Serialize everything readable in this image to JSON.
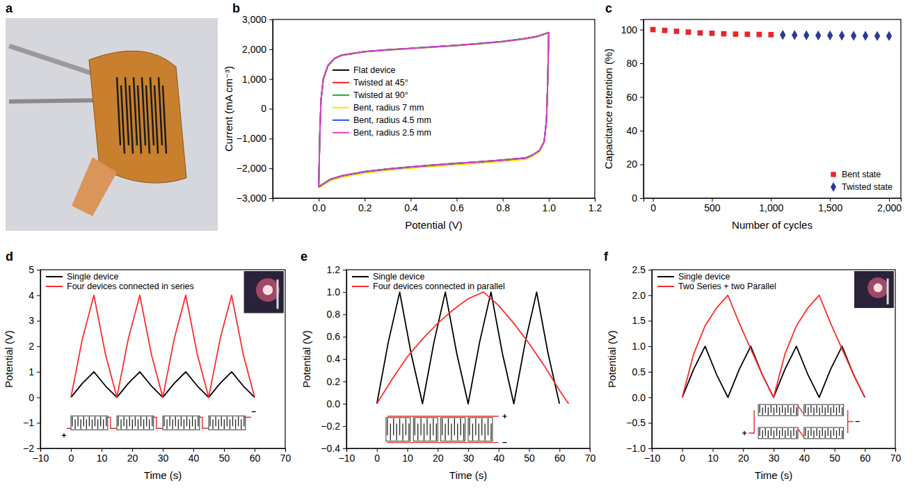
{
  "chart_data": [
    {
      "type": "image",
      "panel": "a"
    },
    {
      "type": "line",
      "panel": "b",
      "xlabel": "Potential (V)",
      "ylabel": "Current (mA cm⁻³)",
      "xlim": [
        -0.2,
        1.2
      ],
      "ylim": [
        -3000,
        3000
      ],
      "xticks": [
        {
          "value": 0,
          "label": "0.0"
        },
        0.2,
        0.4,
        0.6,
        0.8,
        {
          "value": 1,
          "label": "1.0"
        },
        1.2
      ],
      "yticks": [
        {
          "value": -3000,
          "label": "−3,000"
        },
        {
          "value": -2000,
          "label": "−2,000"
        },
        {
          "value": -1000,
          "label": "−1,000"
        },
        0,
        {
          "value": 1000,
          "label": "1,000"
        },
        {
          "value": 2000,
          "label": "2,000"
        },
        {
          "value": 3000,
          "label": "3,000"
        }
      ],
      "grid": false,
      "legend": "center left",
      "x": [
        0,
        0.005,
        0.01,
        0.02,
        0.04,
        0.07,
        0.1,
        0.2,
        0.3,
        0.4,
        0.5,
        0.6,
        0.7,
        0.8,
        0.9,
        0.95,
        1.0,
        0.995,
        0.99,
        0.98,
        0.96,
        0.93,
        0.9,
        0.8,
        0.7,
        0.6,
        0.5,
        0.4,
        0.3,
        0.2,
        0.1,
        0.05,
        0.0
      ],
      "series": [
        {
          "name": "Flat device",
          "color": "#000000",
          "values": [
            -2600,
            -800,
            300,
            1000,
            1450,
            1700,
            1800,
            1920,
            1980,
            2030,
            2080,
            2130,
            2190,
            2260,
            2360,
            2430,
            2560,
            800,
            -400,
            -1100,
            -1400,
            -1550,
            -1650,
            -1720,
            -1780,
            -1830,
            -1890,
            -1950,
            -2020,
            -2110,
            -2250,
            -2370,
            -2620
          ]
        },
        {
          "name": "Twisted at 45°",
          "color": "#ff1a1a",
          "values": [
            -2610,
            -810,
            290,
            990,
            1440,
            1690,
            1795,
            1915,
            1975,
            2025,
            2075,
            2125,
            2185,
            2255,
            2355,
            2425,
            2555,
            790,
            -410,
            -1110,
            -1410,
            -1560,
            -1660,
            -1730,
            -1790,
            -1840,
            -1900,
            -1960,
            -2030,
            -2120,
            -2260,
            -2380,
            -2630
          ]
        },
        {
          "name": "Twisted at 90°",
          "color": "#1aa64a",
          "values": [
            -2590,
            -790,
            310,
            1010,
            1455,
            1705,
            1805,
            1925,
            1985,
            2035,
            2085,
            2135,
            2195,
            2265,
            2365,
            2435,
            2565,
            810,
            -390,
            -1090,
            -1390,
            -1545,
            -1645,
            -1715,
            -1775,
            -1825,
            -1885,
            -1945,
            -2015,
            -2105,
            -2245,
            -2365,
            -2610
          ]
        },
        {
          "name": "Bent, radius 7 mm",
          "color": "#f2e600",
          "values": [
            -2640,
            -830,
            270,
            970,
            1430,
            1680,
            1785,
            1905,
            1965,
            2015,
            2065,
            2115,
            2175,
            2245,
            2345,
            2415,
            2545,
            770,
            -430,
            -1140,
            -1440,
            -1590,
            -1700,
            -1770,
            -1830,
            -1880,
            -1940,
            -2000,
            -2070,
            -2160,
            -2300,
            -2420,
            -2660
          ]
        },
        {
          "name": "Bent, radius 4.5 mm",
          "color": "#1f4fff",
          "values": [
            -2620,
            -815,
            285,
            985,
            1445,
            1695,
            1798,
            1918,
            1978,
            2028,
            2078,
            2128,
            2188,
            2258,
            2358,
            2428,
            2558,
            795,
            -405,
            -1105,
            -1405,
            -1555,
            -1655,
            -1725,
            -1785,
            -1835,
            -1895,
            -1955,
            -2025,
            -2115,
            -2255,
            -2375,
            -2625
          ]
        },
        {
          "name": "Bent, radius 2.5 mm",
          "color": "#e040c8",
          "values": [
            -2600,
            -800,
            300,
            1000,
            1450,
            1700,
            1800,
            1920,
            1980,
            2030,
            2080,
            2130,
            2190,
            2260,
            2360,
            2430,
            2560,
            800,
            -400,
            -1100,
            -1400,
            -1550,
            -1650,
            -1720,
            -1780,
            -1830,
            -1890,
            -1950,
            -2020,
            -2110,
            -2250,
            -2370,
            -2620
          ]
        }
      ]
    },
    {
      "type": "scatter",
      "panel": "c",
      "xlabel": "Number of cycles",
      "ylabel": "Capacitance retention (%)",
      "xlim": [
        -80,
        2100
      ],
      "ylim": [
        0,
        106
      ],
      "xticks": [
        0,
        500,
        {
          "value": 1000,
          "label": "1,000"
        },
        {
          "value": 1500,
          "label": "1,500"
        },
        {
          "value": 2000,
          "label": "2,000"
        }
      ],
      "yticks": [
        0,
        20,
        40,
        60,
        80,
        100
      ],
      "grid": false,
      "legend": "lower right",
      "series": [
        {
          "name": "Bent state",
          "color": "#e8262b",
          "marker": "square",
          "x": [
            0,
            100,
            200,
            300,
            400,
            500,
            600,
            700,
            800,
            900,
            1000
          ],
          "values": [
            100,
            99.5,
            99,
            98.5,
            98,
            97.8,
            97.5,
            97.3,
            97.2,
            97.1,
            97
          ]
        },
        {
          "name": "Twisted state",
          "color": "#2b3a98",
          "marker": "diamond",
          "x": [
            1100,
            1200,
            1300,
            1400,
            1500,
            1600,
            1700,
            1800,
            1900,
            2000
          ],
          "values": [
            96.8,
            96.7,
            96.6,
            96.5,
            96.5,
            96.4,
            96.3,
            96.3,
            96.2,
            96.2
          ]
        }
      ]
    },
    {
      "type": "line",
      "panel": "d",
      "xlabel": "Time (s)",
      "ylabel": "Potential (V)",
      "xlim": [
        -10,
        70
      ],
      "ylim": [
        -2,
        5
      ],
      "xticks": [
        {
          "value": -10,
          "label": "−10"
        },
        0,
        10,
        20,
        30,
        40,
        50,
        60,
        70
      ],
      "yticks": [
        {
          "value": -2,
          "label": "−2"
        },
        {
          "value": -1,
          "label": "−1"
        },
        0,
        1,
        2,
        3,
        4,
        5
      ],
      "grid": false,
      "legend": "upper left",
      "series": [
        {
          "name": "Single device",
          "color": "#000000",
          "x": [
            0,
            3.75,
            7.5,
            11.25,
            15,
            18.75,
            22.5,
            26.25,
            30,
            33.75,
            37.5,
            41.25,
            45,
            48.75,
            52.5,
            56.25,
            60
          ],
          "values": [
            0,
            0.55,
            1,
            0.45,
            0,
            0.55,
            1,
            0.45,
            0,
            0.55,
            1,
            0.45,
            0,
            0.55,
            1,
            0.45,
            0
          ]
        },
        {
          "name": "Four devices connected in series",
          "color": "#ff2a2a",
          "x": [
            0,
            3.75,
            7.5,
            11.25,
            15,
            18.75,
            22.5,
            26.25,
            30,
            33.75,
            37.5,
            41.25,
            45,
            48.75,
            52.5,
            56.25,
            60
          ],
          "values": [
            0,
            2.3,
            4,
            1.7,
            0,
            2.3,
            4,
            1.7,
            0,
            2.3,
            4,
            1.7,
            0,
            2.3,
            4,
            1.7,
            0
          ]
        }
      ]
    },
    {
      "type": "line",
      "panel": "e",
      "xlabel": "Time (s)",
      "ylabel": "Potential (V)",
      "xlim": [
        -10,
        70
      ],
      "ylim": [
        -0.4,
        1.2
      ],
      "xticks": [
        {
          "value": -10,
          "label": "−10"
        },
        0,
        10,
        20,
        30,
        40,
        50,
        60,
        70
      ],
      "yticks": [
        {
          "value": -0.4,
          "label": "−0.4"
        },
        {
          "value": -0.2,
          "label": "−0.2"
        },
        {
          "value": 0,
          "label": "0.0"
        },
        0.2,
        0.4,
        0.6,
        0.8,
        {
          "value": 1,
          "label": "1.0"
        },
        1.2
      ],
      "grid": false,
      "legend": "upper left",
      "series": [
        {
          "name": "Single device",
          "color": "#000000",
          "x": [
            0,
            3.75,
            7.5,
            11.25,
            15,
            18.75,
            22.5,
            26.25,
            30,
            33.75,
            37.5,
            41.25,
            45,
            48.75,
            52.5,
            56.25,
            60
          ],
          "values": [
            0,
            0.55,
            1,
            0.45,
            0,
            0.55,
            1,
            0.45,
            0,
            0.55,
            1,
            0.45,
            0,
            0.55,
            1,
            0.45,
            0
          ]
        },
        {
          "name": "Four devices connected in parallel",
          "color": "#ff2a2a",
          "x": [
            0,
            5,
            10,
            15,
            20,
            25,
            30,
            35,
            40,
            45,
            50,
            55,
            60,
            63
          ],
          "values": [
            0,
            0.22,
            0.42,
            0.58,
            0.72,
            0.84,
            0.94,
            1.0,
            0.88,
            0.72,
            0.54,
            0.34,
            0.12,
            0
          ]
        }
      ]
    },
    {
      "type": "line",
      "panel": "f",
      "xlabel": "Time (s)",
      "ylabel": "Potential (V)",
      "xlim": [
        -10,
        70
      ],
      "ylim": [
        -1,
        2.5
      ],
      "xticks": [
        {
          "value": -10,
          "label": "−10"
        },
        0,
        10,
        20,
        30,
        40,
        50,
        60,
        70
      ],
      "yticks": [
        {
          "value": -1,
          "label": "−1.0"
        },
        {
          "value": -0.5,
          "label": "−0.5"
        },
        {
          "value": 0,
          "label": "0.0"
        },
        0.5,
        {
          "value": 1,
          "label": "1.0"
        },
        1.5,
        {
          "value": 2,
          "label": "2.0"
        },
        2.5
      ],
      "grid": false,
      "legend": "upper left",
      "series": [
        {
          "name": "Single device",
          "color": "#000000",
          "x": [
            0,
            3.75,
            7.5,
            11.25,
            15,
            18.75,
            22.5,
            26.25,
            30,
            33.75,
            37.5,
            41.25,
            45,
            48.75,
            52.5,
            56.25,
            60
          ],
          "values": [
            0,
            0.55,
            1,
            0.45,
            0,
            0.55,
            1,
            0.45,
            0,
            0.55,
            1,
            0.45,
            0,
            0.55,
            1,
            0.45,
            0
          ]
        },
        {
          "name": "Two Series + two Parallel",
          "color": "#ff2a2a",
          "x": [
            0,
            3.75,
            7.5,
            11.25,
            15,
            18.75,
            22.5,
            26.25,
            30,
            33.75,
            37.5,
            41.25,
            45,
            48.75,
            52.5,
            56.25,
            60
          ],
          "values": [
            0,
            0.85,
            1.4,
            1.75,
            2.0,
            1.45,
            0.95,
            0.45,
            0,
            0.85,
            1.4,
            1.75,
            2.0,
            1.45,
            0.95,
            0.45,
            0
          ]
        }
      ]
    }
  ]
}
